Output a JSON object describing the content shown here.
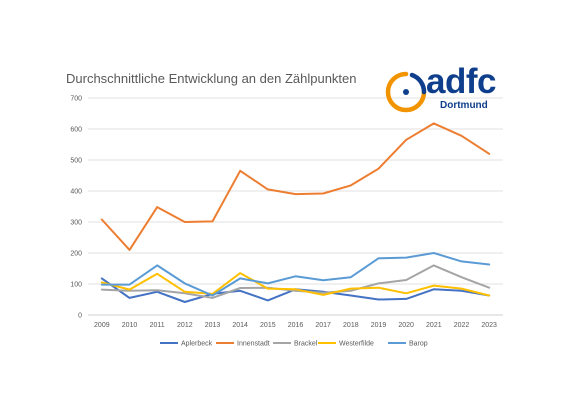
{
  "chart_data": {
    "type": "line",
    "title": "Durchschnittliche Entwicklung an den Zählpunkten",
    "xlabel": "",
    "ylabel": "",
    "ylim": [
      0,
      700
    ],
    "yticks": [
      0,
      100,
      200,
      300,
      400,
      500,
      600,
      700
    ],
    "grid": true,
    "legend_position": "bottom",
    "categories": [
      "2009",
      "2010",
      "2011",
      "2012",
      "2013",
      "2014",
      "2015",
      "2016",
      "2017",
      "2018",
      "2019",
      "2020",
      "2021",
      "2022",
      "2023"
    ],
    "series": [
      {
        "name": "Aplerbeck",
        "color": "#4472c4",
        "values": [
          118,
          55,
          75,
          42,
          68,
          78,
          47,
          83,
          75,
          63,
          50,
          52,
          83,
          78,
          63
        ]
      },
      {
        "name": "Innenstadt",
        "color": "#ed7d31",
        "values": [
          308,
          210,
          348,
          300,
          302,
          465,
          405,
          390,
          392,
          418,
          472,
          565,
          618,
          578,
          520
        ]
      },
      {
        "name": "Brackel",
        "color": "#a5a5a5",
        "values": [
          82,
          78,
          80,
          70,
          55,
          87,
          88,
          78,
          72,
          78,
          102,
          113,
          160,
          122,
          88
        ]
      },
      {
        "name": "Westerfilde",
        "color": "#ffc000",
        "values": [
          105,
          82,
          133,
          75,
          68,
          135,
          85,
          83,
          65,
          85,
          88,
          70,
          95,
          85,
          63
        ]
      },
      {
        "name": "Barop",
        "color": "#5b9bd5",
        "values": [
          98,
          98,
          160,
          102,
          63,
          118,
          102,
          125,
          112,
          122,
          183,
          185,
          200,
          173,
          163
        ]
      }
    ]
  },
  "logo": {
    "word": "adfc",
    "subtitle": "Dortmund",
    "colors": {
      "blue": "#0f3f8c",
      "orange": "#f29400"
    }
  }
}
